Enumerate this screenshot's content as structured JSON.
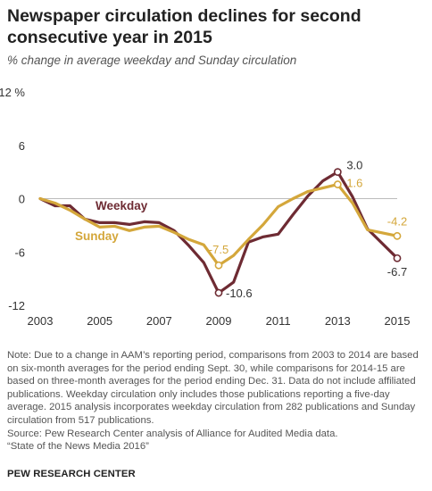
{
  "title": "Newspaper circulation declines for second consecutive year in 2015",
  "subtitle": "% change in average weekday and Sunday circulation",
  "chart_data": {
    "type": "line",
    "title": "Newspaper circulation declines for second consecutive year in 2015",
    "subtitle": "% change in average weekday and Sunday circulation",
    "xlabel": "",
    "ylabel": "",
    "x": [
      2003,
      2003.5,
      2004,
      2004.5,
      2005,
      2005.5,
      2006,
      2006.5,
      2007,
      2007.5,
      2008,
      2008.5,
      2009,
      2009.5,
      2010,
      2010.5,
      2011,
      2011.5,
      2012,
      2012.5,
      2013,
      2013.5,
      2014,
      2015
    ],
    "xlim": [
      2003,
      2015
    ],
    "ylim": [
      -12,
      12
    ],
    "x_ticks": [
      2003,
      2005,
      2007,
      2009,
      2011,
      2013,
      2015
    ],
    "y_ticks": [
      12,
      6,
      0,
      -6,
      -12
    ],
    "y_tick_labels": [
      "12 %",
      "6",
      "0",
      "-6",
      "-12"
    ],
    "series": [
      {
        "name": "Weekday",
        "color": "#6e2b33",
        "values": [
          0,
          -0.8,
          -0.8,
          -2.3,
          -2.7,
          -2.7,
          -2.9,
          -2.6,
          -2.7,
          -3.6,
          -5.3,
          -7.2,
          -10.6,
          -9.4,
          -4.9,
          -4.3,
          -4.0,
          -1.8,
          0.3,
          2.0,
          3.0,
          0.2,
          -3.4,
          -6.7
        ],
        "end_labels": [
          {
            "x": 2009,
            "label": "-10.6"
          },
          {
            "x": 2013,
            "label": "3.0"
          },
          {
            "x": 2015,
            "label": "-6.7"
          }
        ]
      },
      {
        "name": "Sunday",
        "color": "#d4a73b",
        "values": [
          0,
          -0.5,
          -1.3,
          -2.3,
          -3.2,
          -3.1,
          -3.6,
          -3.2,
          -3.1,
          -3.8,
          -4.6,
          -5.2,
          -7.5,
          -6.4,
          -4.6,
          -2.9,
          -0.9,
          0.0,
          0.8,
          1.2,
          1.6,
          -0.5,
          -3.5,
          -4.2
        ],
        "end_labels": [
          {
            "x": 2009,
            "label": "-7.5"
          },
          {
            "x": 2013,
            "label": "1.6"
          },
          {
            "x": 2015,
            "label": "-4.2"
          }
        ]
      }
    ],
    "legend": "inline-left",
    "grid": false
  },
  "note": "Note: Due to a change in AAM’s reporting period, comparisons from 2003 to 2014 are based on six-month averages for the period ending Sept. 30, while comparisons for 2014-15 are based on three-month averages for the period ending Dec. 31. Data do not include affiliated publications. Weekday circulation only includes those publications reporting a five-day average. 2015 analysis incorporates weekday circulation from 282 publications and Sunday circulation from 517 publications.",
  "source": "Source: Pew Research Center analysis of Alliance for Audited Media data.",
  "source_title": "“State of the News Media 2016”",
  "brand": "PEW RESEARCH CENTER"
}
